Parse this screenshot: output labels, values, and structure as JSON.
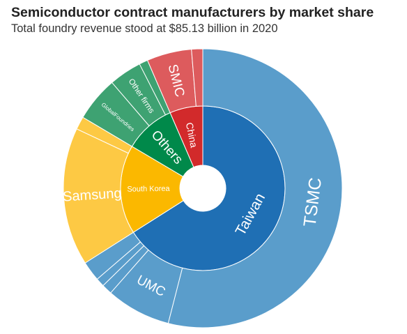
{
  "title": "Semiconductor contract manufacturers by market share",
  "subtitle": "Total foundry revenue stood at $85.13 billion in 2020",
  "chart_data": {
    "type": "sunburst",
    "unit": "share of total foundry revenue (%)",
    "inner_ring": [
      {
        "name": "Taiwan",
        "label": "Taiwan",
        "value": 66.0,
        "color": "#1f6fb4"
      },
      {
        "name": "South Korea",
        "label": "South Korea",
        "value": 17.5,
        "color": "#fbb800"
      },
      {
        "name": "Others",
        "label": "Others",
        "value": 10.0,
        "color": "#00894a"
      },
      {
        "name": "China",
        "label": "China",
        "value": 6.5,
        "color": "#d22a2b"
      }
    ],
    "outer_ring": [
      {
        "name": "TSMC",
        "label": "TSMC",
        "parent": "Taiwan",
        "value": 54.0,
        "color": "#5a9dcb"
      },
      {
        "name": "UMC",
        "label": "UMC",
        "parent": "Taiwan",
        "value": 7.5,
        "color": "#5a9dcb"
      },
      {
        "name": "taiwan-other-1",
        "label": "",
        "parent": "Taiwan",
        "value": 1.2,
        "color": "#5a9dcb"
      },
      {
        "name": "taiwan-other-2",
        "label": "",
        "parent": "Taiwan",
        "value": 1.0,
        "color": "#5a9dcb"
      },
      {
        "name": "taiwan-other-3",
        "label": "",
        "parent": "Taiwan",
        "value": 2.3,
        "color": "#5a9dcb"
      },
      {
        "name": "Samsung",
        "label": "Samsung",
        "parent": "South Korea",
        "value": 16.0,
        "color": "#fdc944"
      },
      {
        "name": "korea-other",
        "label": "",
        "parent": "South Korea",
        "value": 1.5,
        "color": "#fdc944"
      },
      {
        "name": "GlobalFoundries",
        "label": "GlobalFoundries",
        "parent": "Others",
        "value": 5.2,
        "color": "#3ea272"
      },
      {
        "name": "Other firms",
        "label": "Other firms",
        "parent": "Others",
        "value": 3.8,
        "color": "#3ea272"
      },
      {
        "name": "others-other",
        "label": "",
        "parent": "Others",
        "value": 1.0,
        "color": "#3ea272"
      },
      {
        "name": "SMIC",
        "label": "SMIC",
        "parent": "China",
        "value": 5.2,
        "color": "#dd5b5d"
      },
      {
        "name": "china-other",
        "label": "",
        "parent": "China",
        "value": 1.3,
        "color": "#dd5b5d"
      }
    ]
  }
}
